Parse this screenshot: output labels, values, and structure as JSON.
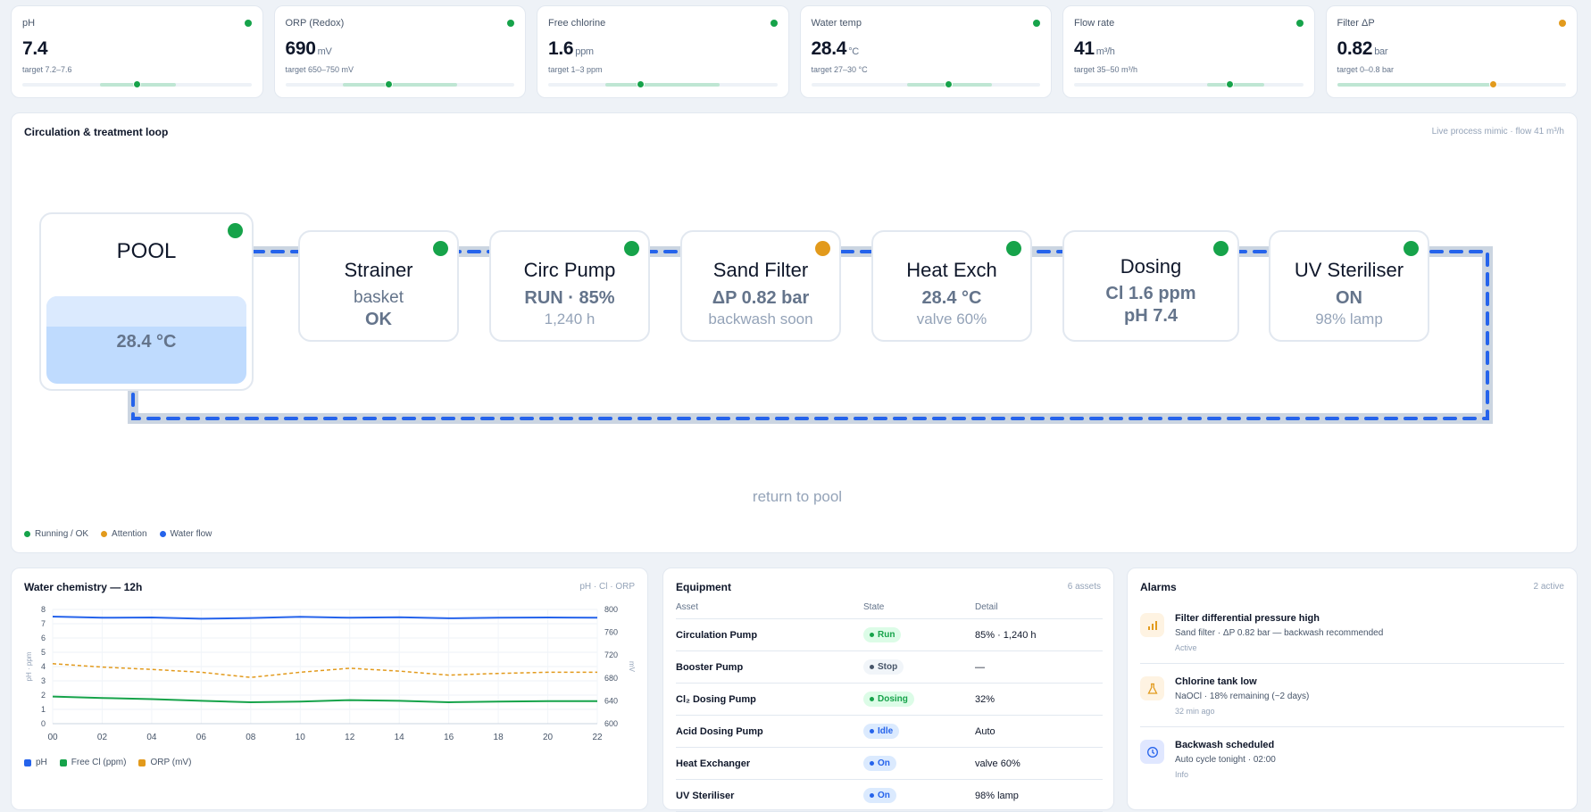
{
  "kpis": [
    {
      "label": "pH",
      "value": "7.4",
      "unit": "",
      "target": "target 7.2–7.6",
      "status_color": "#16a34a",
      "band": [
        0.34,
        0.67
      ],
      "marker": 0.5,
      "marker_color": "#16a34a"
    },
    {
      "label": "ORP (Redox)",
      "value": "690",
      "unit": "mV",
      "target": "target 650–750 mV",
      "status_color": "#16a34a",
      "band": [
        0.25,
        0.75
      ],
      "marker": 0.45,
      "marker_color": "#16a34a"
    },
    {
      "label": "Free chlorine",
      "value": "1.6",
      "unit": "ppm",
      "target": "target 1–3 ppm",
      "status_color": "#16a34a",
      "band": [
        0.25,
        0.75
      ],
      "marker": 0.4,
      "marker_color": "#16a34a"
    },
    {
      "label": "Water temp",
      "value": "28.4",
      "unit": "°C",
      "target": "target 27–30 °C",
      "status_color": "#16a34a",
      "band": [
        0.42,
        0.79
      ],
      "marker": 0.6,
      "marker_color": "#16a34a"
    },
    {
      "label": "Flow rate",
      "value": "41",
      "unit": "m³/h",
      "target": "target 35–50 m³/h",
      "status_color": "#16a34a",
      "band": [
        0.58,
        0.83
      ],
      "marker": 0.68,
      "marker_color": "#16a34a"
    },
    {
      "label": "Filter ΔP",
      "value": "0.82",
      "unit": "bar",
      "target": "target 0–0.8 bar",
      "status_color": "#e29a1c",
      "band": [
        0.0,
        0.67
      ],
      "marker": 0.68,
      "marker_color": "#e29a1c"
    }
  ],
  "mimic": {
    "title": "Circulation & treatment loop",
    "meta": "Live process mimic · flow 41 m³/h",
    "pool": {
      "title": "POOL",
      "temp": "28.4 °C",
      "status_color": "#16a34a"
    },
    "nodes": [
      {
        "title": "Strainer",
        "line1": "basket",
        "line2": "OK",
        "bold": "line2",
        "status_color": "#16a34a"
      },
      {
        "title": "Circ Pump",
        "line1": "RUN · 85%",
        "line2": "1,240 h",
        "bold": "line1",
        "status_color": "#16a34a"
      },
      {
        "title": "Sand Filter",
        "line1": "ΔP 0.82 bar",
        "line2": "backwash soon",
        "bold": "line1",
        "status_color": "#e29a1c"
      },
      {
        "title": "Heat Exch",
        "line1": "28.4 °C",
        "line2": "valve 60%",
        "bold": "line1",
        "status_color": "#16a34a"
      },
      {
        "title": "Dosing",
        "line1": "Cl 1.6 ppm",
        "line2": "pH 7.4",
        "bold": "both",
        "status_color": "#16a34a"
      },
      {
        "title": "UV Steriliser",
        "line1": "ON",
        "line2": "98% lamp",
        "bold": "line1",
        "status_color": "#16a34a"
      }
    ],
    "return_label": "return to pool",
    "legend": [
      {
        "label": "Running / OK",
        "color": "#16a34a"
      },
      {
        "label": "Attention",
        "color": "#e29a1c"
      },
      {
        "label": "Water flow",
        "color": "#2563eb"
      }
    ]
  },
  "chemistry": {
    "title": "Water chemistry — 12h",
    "meta": "pH · Cl · ORP",
    "legend": [
      "pH",
      "Free Cl (ppm)",
      "ORP (mV)"
    ]
  },
  "chart_data": {
    "type": "line",
    "title": "Water chemistry — 12h",
    "x": [
      "00",
      "02",
      "04",
      "06",
      "08",
      "10",
      "12",
      "14",
      "16",
      "18",
      "20",
      "22"
    ],
    "xlabel": "",
    "ylabel": "pH · ppm",
    "ylabel_right": "mV",
    "ylim": [
      0,
      8
    ],
    "yticks": [
      0,
      1,
      2,
      3,
      4,
      5,
      6,
      7,
      8
    ],
    "ylim_right": [
      600,
      800
    ],
    "yticks_right": [
      600,
      640,
      680,
      720,
      760,
      800
    ],
    "grid": true,
    "legend_position": "bottom-left",
    "series": [
      {
        "name": "pH",
        "axis": "left",
        "color": "#2563eb",
        "style": "solid",
        "values": [
          7.5,
          7.42,
          7.44,
          7.35,
          7.4,
          7.48,
          7.42,
          7.45,
          7.38,
          7.42,
          7.44,
          7.42
        ]
      },
      {
        "name": "Free Cl (ppm)",
        "axis": "left",
        "color": "#16a34a",
        "style": "solid",
        "values": [
          1.9,
          1.8,
          1.72,
          1.6,
          1.5,
          1.55,
          1.65,
          1.6,
          1.5,
          1.55,
          1.58,
          1.58
        ]
      },
      {
        "name": "ORP (mV)",
        "axis": "right",
        "color": "#e29a1c",
        "style": "dashed",
        "values": [
          705,
          699,
          695,
          690,
          681,
          690,
          697,
          692,
          685,
          688,
          690,
          690
        ]
      }
    ]
  },
  "equipment": {
    "title": "Equipment",
    "meta": "6 assets",
    "headers": [
      "Asset",
      "State",
      "Detail"
    ],
    "rows": [
      {
        "asset": "Circulation Pump",
        "state": "Run",
        "state_color": "#16a34a",
        "state_bg": "#dcfce7",
        "detail": "85% · 1,240 h"
      },
      {
        "asset": "Booster Pump",
        "state": "Stop",
        "state_color": "#475569",
        "state_bg": "#f1f5f9",
        "detail": "—"
      },
      {
        "asset": "Cl₂ Dosing Pump",
        "state": "Dosing",
        "state_color": "#16a34a",
        "state_bg": "#dcfce7",
        "detail": "32%"
      },
      {
        "asset": "Acid Dosing Pump",
        "state": "Idle",
        "state_color": "#2563eb",
        "state_bg": "#dbeafe",
        "detail": "Auto"
      },
      {
        "asset": "Heat Exchanger",
        "state": "On",
        "state_color": "#2563eb",
        "state_bg": "#dbeafe",
        "detail": "valve 60%"
      },
      {
        "asset": "UV Steriliser",
        "state": "On",
        "state_color": "#2563eb",
        "state_bg": "#dbeafe",
        "detail": "98% lamp"
      }
    ]
  },
  "alarms": {
    "title": "Alarms",
    "meta": "2 active",
    "items": [
      {
        "icon": "bar-chart-icon",
        "title": "Filter differential pressure high",
        "desc": "Sand filter · ΔP 0.82 bar — backwash recommended",
        "status": "Active",
        "icon_color": "#e29a1c",
        "icon_bg": "#fef3e2"
      },
      {
        "icon": "flask-icon",
        "title": "Chlorine tank low",
        "desc": "NaOCl · 18% remaining (~2 days)",
        "status": "32 min ago",
        "icon_color": "#e29a1c",
        "icon_bg": "#fef3e2"
      },
      {
        "icon": "clock-icon",
        "title": "Backwash scheduled",
        "desc": "Auto cycle tonight · 02:00",
        "status": "Info",
        "icon_color": "#2563eb",
        "icon_bg": "#e0e7ff"
      }
    ]
  }
}
